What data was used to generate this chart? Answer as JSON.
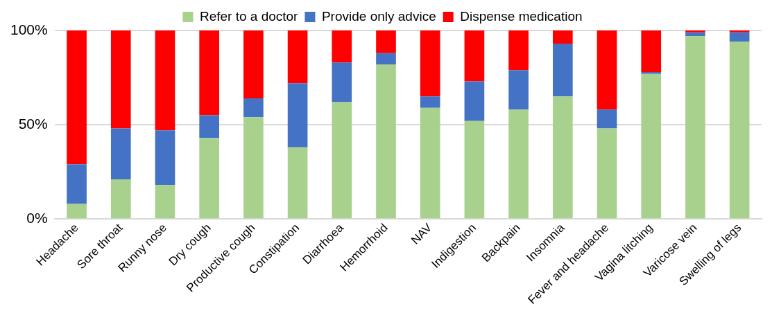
{
  "chart_data": {
    "type": "bar",
    "stacked": true,
    "categories": [
      "Headache",
      "Sore throat",
      "Runny nose",
      "Dry cough",
      "Productive cough",
      "Constipation",
      "Diarrhoea",
      "Hemorrhoid",
      "NAV",
      "Indigestion",
      "Backpain",
      "Insomnia",
      "Fever and headache",
      "Vagina litching",
      "Varicose vein",
      "Swelling of legs"
    ],
    "series": [
      {
        "name": "Refer to a doctor",
        "color": "#a9d18e",
        "values": [
          8,
          21,
          18,
          43,
          54,
          38,
          62,
          82,
          59,
          52,
          58,
          65,
          48,
          77,
          97,
          94
        ]
      },
      {
        "name": "Provide only advice",
        "color": "#4472c4",
        "values": [
          21,
          27,
          29,
          12,
          10,
          34,
          21,
          6,
          6,
          21,
          21,
          28,
          10,
          1,
          2,
          5
        ]
      },
      {
        "name": "Dispense medication",
        "color": "#ff0000",
        "values": [
          71,
          52,
          53,
          45,
          36,
          28,
          17,
          12,
          35,
          27,
          21,
          7,
          42,
          22,
          1,
          1
        ]
      }
    ],
    "ylim": [
      0,
      100
    ],
    "yticks": [
      {
        "value": 0,
        "label": "0%"
      },
      {
        "value": 50,
        "label": "50%"
      },
      {
        "value": 100,
        "label": "100%"
      }
    ],
    "grid": "y",
    "legend": "top"
  }
}
